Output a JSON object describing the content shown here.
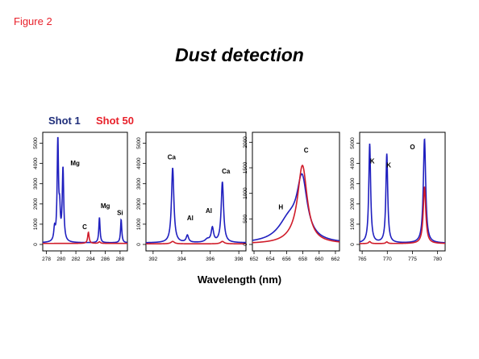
{
  "figure_label": "Figure 2",
  "title": "Dust detection",
  "colors": {
    "shot1": "#1f1fbf",
    "shot50": "#d01c2a",
    "legend_shot1": "#1f2e7a",
    "legend_shot50": "#e8202a"
  },
  "chart_data": {
    "xlabel": "Wavelength (nm)",
    "legend_placement": "top-left",
    "series": [
      {
        "name": "Shot 1",
        "color": "#1f1fbf"
      },
      {
        "name": "Shot 50",
        "color": "#d01c2a"
      }
    ],
    "panels": [
      {
        "type": "line",
        "xlim": [
          277.5,
          289
        ],
        "ylim": [
          0,
          5300
        ],
        "xticks": [
          278,
          280,
          282,
          284,
          286,
          288
        ],
        "yticks": [
          0,
          1000,
          2000,
          3000,
          4000,
          5000
        ],
        "shot1_peaks": [
          [
            279.1,
            600,
            0.12
          ],
          [
            279.55,
            5000,
            0.11
          ],
          [
            279.8,
            1300,
            0.1
          ],
          [
            280.25,
            3600,
            0.12
          ],
          [
            285.2,
            1250,
            0.1
          ],
          [
            288.15,
            1150,
            0.1
          ]
        ],
        "shot1_baseline": 80,
        "shot50_peaks": [
          [
            283.7,
            550,
            0.12
          ],
          [
            285.2,
            80,
            0.15
          ]
        ],
        "shot50_baseline": 50,
        "annotations": [
          {
            "text": "Mg",
            "x": 281.9,
            "y": 3900
          },
          {
            "text": "C",
            "x": 283.2,
            "y": 750
          },
          {
            "text": "Mg",
            "x": 286.0,
            "y": 1800
          },
          {
            "text": "Si",
            "x": 288.0,
            "y": 1450
          }
        ]
      },
      {
        "type": "line",
        "xlim": [
          391.5,
          398.5
        ],
        "ylim": [
          0,
          5300
        ],
        "xticks": [
          392,
          394,
          396,
          398
        ],
        "yticks": [
          0,
          1000,
          2000,
          3000,
          4000,
          5000
        ],
        "shot1_peaks": [
          [
            393.37,
            3700,
            0.1
          ],
          [
            394.4,
            350,
            0.1
          ],
          [
            396.15,
            700,
            0.1
          ],
          [
            396.85,
            3000,
            0.1
          ],
          [
            395.8,
            150,
            0.2
          ]
        ],
        "shot1_baseline": 80,
        "shot50_peaks": [
          [
            393.37,
            120,
            0.15
          ],
          [
            396.85,
            120,
            0.15
          ]
        ],
        "shot50_baseline": 30,
        "annotations": [
          {
            "text": "Ca",
            "x": 393.3,
            "y": 4200
          },
          {
            "text": "Al",
            "x": 394.6,
            "y": 1200
          },
          {
            "text": "Al",
            "x": 395.9,
            "y": 1550
          },
          {
            "text": "Ca",
            "x": 397.1,
            "y": 3500
          }
        ]
      },
      {
        "type": "line",
        "xlim": [
          651.8,
          662.5
        ],
        "ylim": [
          0,
          2100
        ],
        "xticks": [
          652,
          654,
          656,
          658,
          660,
          662
        ],
        "yticks": [
          0,
          500,
          1000,
          1500,
          2000
        ],
        "shot1_peaks": [
          [
            657.9,
            1150,
            0.75
          ],
          [
            656.3,
            430,
            1.6
          ]
        ],
        "shot1_baseline": 15,
        "shot50_peaks": [
          [
            657.95,
            1480,
            0.7
          ],
          [
            657.0,
            80,
            1.5
          ]
        ],
        "shot50_baseline": 10,
        "annotations": [
          {
            "text": "C",
            "x": 658.4,
            "y": 1800
          },
          {
            "text": "H",
            "x": 655.3,
            "y": 690
          }
        ]
      },
      {
        "type": "line",
        "xlim": [
          764.5,
          781.5
        ],
        "ylim": [
          0,
          5300
        ],
        "xticks": [
          765,
          770,
          775,
          780
        ],
        "yticks": [
          0,
          1000,
          2000,
          3000,
          4000,
          5000
        ],
        "shot1_peaks": [
          [
            766.5,
            4900,
            0.22
          ],
          [
            769.9,
            4400,
            0.22
          ],
          [
            777.4,
            5150,
            0.28
          ]
        ],
        "shot1_baseline": 60,
        "shot50_peaks": [
          [
            766.5,
            100,
            0.25
          ],
          [
            769.9,
            80,
            0.25
          ],
          [
            777.4,
            2800,
            0.3
          ]
        ],
        "shot50_baseline": 40,
        "annotations": [
          {
            "text": "K",
            "x": 767.0,
            "y": 4000
          },
          {
            "text": "K",
            "x": 770.3,
            "y": 3800
          },
          {
            "text": "O",
            "x": 775.0,
            "y": 4700
          }
        ]
      }
    ]
  }
}
